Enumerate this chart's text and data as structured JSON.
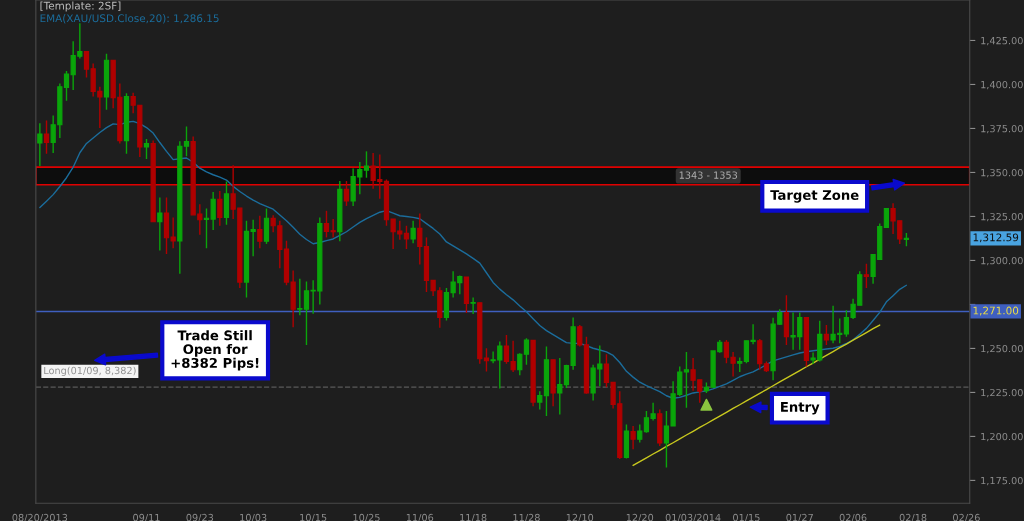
{
  "chart_data": {
    "type": "candlestick",
    "title": "[Template: 2SF]",
    "subtitle": "EMA(XAU/USD.Close,20): 1,286.15",
    "categories": [
      "08/20/2013",
      null,
      null,
      null,
      null,
      null,
      null,
      null,
      null,
      null,
      null,
      null,
      null,
      null,
      null,
      null,
      "09/11",
      null,
      null,
      null,
      null,
      null,
      null,
      null,
      "09/23",
      null,
      null,
      null,
      null,
      null,
      null,
      null,
      "10/03",
      null,
      null,
      null,
      null,
      null,
      null,
      null,
      null,
      "10/15",
      null,
      null,
      null,
      null,
      null,
      null,
      null,
      "10/25",
      null,
      null,
      null,
      null,
      null,
      null,
      null,
      "11/06",
      null,
      null,
      null,
      null,
      null,
      null,
      null,
      "11/18",
      null,
      null,
      null,
      null,
      null,
      null,
      null,
      "11/28",
      null,
      null,
      null,
      null,
      null,
      null,
      null,
      "12/10",
      null,
      null,
      null,
      null,
      null,
      null,
      null,
      null,
      "12/20",
      null,
      null,
      null,
      null,
      null,
      null,
      null,
      "01/03/2014",
      null,
      null,
      null,
      null,
      null,
      null,
      null,
      "01/15",
      null,
      null,
      null,
      null,
      null,
      null,
      null,
      "01/27",
      null,
      null,
      null,
      null,
      null,
      null,
      null,
      "02/06",
      null,
      null,
      null,
      null,
      null,
      null,
      null,
      null,
      "02/18",
      null,
      null,
      null,
      null,
      null,
      null,
      null,
      "02/26"
    ],
    "ohlc": [
      [
        1366.7,
        1378.0,
        1353.6,
        1371.8
      ],
      [
        1371.8,
        1379.5,
        1360.7,
        1367.1
      ],
      [
        1367.1,
        1382.4,
        1361.1,
        1377.1
      ],
      [
        1377.1,
        1400.6,
        1369.6,
        1398.7
      ],
      [
        1398.3,
        1407.6,
        1390.8,
        1405.9
      ],
      [
        1405.5,
        1424.5,
        1396.8,
        1416.4
      ],
      [
        1416.0,
        1434.8,
        1414.7,
        1418.7
      ],
      [
        1418.7,
        1418.7,
        1404.0,
        1408.7
      ],
      [
        1408.9,
        1411.9,
        1393.1,
        1396.1
      ],
      [
        1396.1,
        1398.7,
        1375.2,
        1392.9
      ],
      [
        1392.9,
        1417.5,
        1385.6,
        1413.8
      ],
      [
        1413.8,
        1413.8,
        1386.5,
        1392.5
      ],
      [
        1392.7,
        1400.6,
        1366.4,
        1368.1
      ],
      [
        1368.1,
        1395.0,
        1360.7,
        1393.1
      ],
      [
        1393.1,
        1395.3,
        1383.7,
        1388.2
      ],
      [
        1388.2,
        1388.2,
        1358.8,
        1364.5
      ],
      [
        1364.5,
        1369.0,
        1357.7,
        1366.4
      ],
      [
        1366.4,
        1368.2,
        1322.0,
        1322.0
      ],
      [
        1322.0,
        1335.7,
        1305.6,
        1326.9
      ],
      [
        1326.9,
        1335.7,
        1303.7,
        1312.9
      ],
      [
        1313.3,
        1324.4,
        1306.9,
        1311.1
      ],
      [
        1311.1,
        1367.7,
        1292.4,
        1364.9
      ],
      [
        1364.9,
        1376.1,
        1359.2,
        1367.5
      ],
      [
        1367.5,
        1370.5,
        1325.9,
        1325.9
      ],
      [
        1326.3,
        1331.9,
        1314.6,
        1323.1
      ],
      [
        1323.3,
        1329.5,
        1306.9,
        1324.0
      ],
      [
        1323.5,
        1338.9,
        1317.3,
        1334.8
      ],
      [
        1334.8,
        1339.5,
        1319.7,
        1324.4
      ],
      [
        1324.4,
        1344.9,
        1320.3,
        1337.8
      ],
      [
        1337.8,
        1354.1,
        1323.5,
        1329.1
      ],
      [
        1329.7,
        1329.7,
        1284.3,
        1287.7
      ],
      [
        1287.7,
        1322.5,
        1278.9,
        1316.5
      ],
      [
        1316.5,
        1323.1,
        1302.4,
        1317.5
      ],
      [
        1317.5,
        1325.4,
        1306.9,
        1310.9
      ],
      [
        1310.9,
        1329.5,
        1309.4,
        1324.0
      ],
      [
        1323.9,
        1325.7,
        1316.0,
        1319.7
      ],
      [
        1319.7,
        1322.5,
        1295.6,
        1306.2
      ],
      [
        1306.5,
        1311.2,
        1285.9,
        1287.7
      ],
      [
        1287.7,
        1294.3,
        1262.0,
        1272.3
      ],
      [
        1272.3,
        1289.6,
        1268.9,
        1272.7
      ],
      [
        1272.3,
        1288.1,
        1252.0,
        1282.7
      ],
      [
        1282.7,
        1288.7,
        1269.7,
        1283.0
      ],
      [
        1282.7,
        1324.4,
        1274.9,
        1321.0
      ],
      [
        1321.0,
        1328.2,
        1313.1,
        1316.5
      ],
      [
        1316.9,
        1323.5,
        1313.1,
        1316.3
      ],
      [
        1316.3,
        1345.1,
        1310.9,
        1340.4
      ],
      [
        1340.4,
        1345.1,
        1331.0,
        1333.8
      ],
      [
        1333.8,
        1352.3,
        1331.0,
        1347.6
      ],
      [
        1347.4,
        1356.0,
        1337.6,
        1351.7
      ],
      [
        1351.3,
        1362.0,
        1347.0,
        1353.6
      ],
      [
        1353.6,
        1361.1,
        1340.8,
        1345.5
      ],
      [
        1346.0,
        1360.2,
        1335.1,
        1344.9
      ],
      [
        1344.9,
        1346.0,
        1319.7,
        1323.1
      ],
      [
        1323.5,
        1323.5,
        1306.5,
        1316.3
      ],
      [
        1316.7,
        1322.5,
        1311.8,
        1315.0
      ],
      [
        1315.4,
        1319.7,
        1306.5,
        1312.2
      ],
      [
        1312.2,
        1322.5,
        1309.7,
        1318.2
      ],
      [
        1318.2,
        1326.7,
        1297.7,
        1307.9
      ],
      [
        1307.9,
        1313.1,
        1282.1,
        1288.7
      ],
      [
        1288.7,
        1288.7,
        1279.8,
        1282.8
      ],
      [
        1282.8,
        1284.7,
        1261.8,
        1267.6
      ],
      [
        1267.6,
        1284.3,
        1265.9,
        1281.7
      ],
      [
        1281.7,
        1293.9,
        1278.9,
        1287.7
      ],
      [
        1287.4,
        1291.5,
        1280.8,
        1290.9
      ],
      [
        1290.6,
        1290.6,
        1270.2,
        1275.5
      ],
      [
        1275.7,
        1278.9,
        1269.5,
        1276.1
      ],
      [
        1275.9,
        1275.9,
        1241.3,
        1244.1
      ],
      [
        1244.5,
        1250.1,
        1236.9,
        1243.0
      ],
      [
        1243.0,
        1248.2,
        1241.6,
        1243.5
      ],
      [
        1243.5,
        1253.9,
        1227.2,
        1251.4
      ],
      [
        1251.4,
        1257.6,
        1241.3,
        1242.6
      ],
      [
        1242.6,
        1254.4,
        1236.6,
        1237.9
      ],
      [
        1237.9,
        1247.3,
        1234.7,
        1246.7
      ],
      [
        1246.7,
        1255.8,
        1240.7,
        1254.8
      ],
      [
        1254.6,
        1254.6,
        1217.2,
        1219.5
      ],
      [
        1219.5,
        1225.7,
        1215.3,
        1223.2
      ],
      [
        1223.2,
        1251.1,
        1211.6,
        1243.5
      ],
      [
        1243.5,
        1243.5,
        1217.2,
        1224.7
      ],
      [
        1224.7,
        1244.5,
        1212.5,
        1229.4
      ],
      [
        1229.4,
        1240.7,
        1227.5,
        1240.3
      ],
      [
        1240.3,
        1267.6,
        1237.9,
        1262.3
      ],
      [
        1262.3,
        1263.3,
        1251.1,
        1252.0
      ],
      [
        1252.0,
        1256.7,
        1224.2,
        1224.7
      ],
      [
        1224.7,
        1240.7,
        1220.4,
        1238.8
      ],
      [
        1238.4,
        1251.6,
        1228.5,
        1241.1
      ],
      [
        1241.1,
        1246.7,
        1227.9,
        1230.7
      ],
      [
        1230.7,
        1230.7,
        1215.9,
        1218.1
      ],
      [
        1218.5,
        1225.7,
        1187.1,
        1188.0
      ],
      [
        1188.0,
        1206.8,
        1187.5,
        1203.1
      ],
      [
        1202.7,
        1205.9,
        1192.7,
        1198.4
      ],
      [
        1198.4,
        1206.8,
        1196.5,
        1203.1
      ],
      [
        1202.7,
        1214.4,
        1202.1,
        1210.6
      ],
      [
        1210.2,
        1219.1,
        1209.1,
        1212.9
      ],
      [
        1212.9,
        1215.3,
        1194.6,
        1196.3
      ],
      [
        1196.3,
        1214.4,
        1182.4,
        1205.9
      ],
      [
        1205.9,
        1231.3,
        1205.9,
        1224.2
      ],
      [
        1223.8,
        1239.8,
        1222.8,
        1236.6
      ],
      [
        1236.6,
        1247.9,
        1216.3,
        1237.9
      ],
      [
        1237.9,
        1244.5,
        1226.0,
        1231.9
      ],
      [
        1232.2,
        1232.2,
        1219.1,
        1225.7
      ],
      [
        1226.0,
        1230.7,
        1224.7,
        1227.9
      ],
      [
        1227.9,
        1248.6,
        1227.5,
        1248.6
      ],
      [
        1248.2,
        1254.8,
        1247.5,
        1253.5
      ],
      [
        1253.5,
        1254.8,
        1241.6,
        1245.0
      ],
      [
        1245.0,
        1247.9,
        1234.1,
        1241.6
      ],
      [
        1241.6,
        1244.8,
        1236.6,
        1242.6
      ],
      [
        1242.6,
        1254.3,
        1241.6,
        1254.3
      ],
      [
        1253.9,
        1263.7,
        1252.4,
        1254.6
      ],
      [
        1254.4,
        1255.4,
        1237.9,
        1241.3
      ],
      [
        1241.3,
        1242.6,
        1236.6,
        1237.3
      ],
      [
        1237.3,
        1267.4,
        1231.9,
        1263.8
      ],
      [
        1263.8,
        1272.3,
        1263.3,
        1270.4
      ],
      [
        1270.4,
        1280.2,
        1252.0,
        1256.7
      ],
      [
        1256.5,
        1270.4,
        1249.2,
        1257.3
      ],
      [
        1256.7,
        1270.4,
        1249.2,
        1267.6
      ],
      [
        1267.6,
        1267.6,
        1239.8,
        1243.2
      ],
      [
        1243.5,
        1247.7,
        1241.1,
        1244.5
      ],
      [
        1243.5,
        1265.7,
        1242.6,
        1258.0
      ],
      [
        1258.0,
        1263.3,
        1252.0,
        1254.8
      ],
      [
        1254.8,
        1274.2,
        1252.9,
        1258.0
      ],
      [
        1258.0,
        1267.0,
        1252.9,
        1258.6
      ],
      [
        1258.2,
        1271.7,
        1256.7,
        1267.6
      ],
      [
        1267.6,
        1278.3,
        1266.7,
        1275.1
      ],
      [
        1274.6,
        1293.8,
        1274.6,
        1291.9
      ],
      [
        1291.9,
        1298.1,
        1284.3,
        1290.9
      ],
      [
        1290.9,
        1303.7,
        1286.8,
        1303.3
      ],
      [
        1300.5,
        1321.0,
        1300.5,
        1319.3
      ],
      [
        1318.8,
        1329.5,
        1318.4,
        1329.5
      ],
      [
        1329.5,
        1332.5,
        1315.0,
        1322.5
      ],
      [
        1322.5,
        1322.5,
        1309.4,
        1312.2
      ],
      [
        1312.0,
        1315.6,
        1308.1,
        1312.6
      ],
      null,
      null,
      null,
      null,
      null,
      null,
      null,
      null,
      null
    ],
    "colors": [
      "#0aa50a",
      "#b00000",
      "#0aa50a",
      "#0aa50a",
      "#0aa50a",
      "#0aa50a",
      "#0aa50a",
      "#b00000",
      "#b00000",
      "#b00000",
      "#0aa50a",
      "#b00000",
      "#b00000",
      "#0aa50a",
      "#b00000",
      "#b00000",
      "#0aa50a",
      "#b00000",
      "#0aa50a",
      "#b00000",
      "#b00000",
      "#0aa50a",
      "#0aa50a",
      "#b00000",
      "#b00000",
      "#0aa50a",
      "#0aa50a",
      "#b00000",
      "#0aa50a",
      "#b00000",
      "#b00000",
      "#0aa50a",
      "#0aa50a",
      "#b00000",
      "#0aa50a",
      "#b00000",
      "#b00000",
      "#b00000",
      "#b00000",
      "#0aa50a",
      "#0aa50a",
      "#0aa50a",
      "#0aa50a",
      "#b00000",
      "#b00000",
      "#0aa50a",
      "#b00000",
      "#0aa50a",
      "#0aa50a",
      "#0aa50a",
      "#b00000",
      "#b00000",
      "#b00000",
      "#b00000",
      "#b00000",
      "#b00000",
      "#0aa50a",
      "#b00000",
      "#b00000",
      "#b00000",
      "#b00000",
      "#0aa50a",
      "#0aa50a",
      "#0aa50a",
      "#b00000",
      "#0aa50a",
      "#b00000",
      "#b00000",
      "#0aa50a",
      "#0aa50a",
      "#b00000",
      "#b00000",
      "#0aa50a",
      "#0aa50a",
      "#b00000",
      "#0aa50a",
      "#0aa50a",
      "#b00000",
      "#0aa50a",
      "#0aa50a",
      "#0aa50a",
      "#b00000",
      "#b00000",
      "#0aa50a",
      "#0aa50a",
      "#b00000",
      "#b00000",
      "#b00000",
      "#0aa50a",
      "#b00000",
      "#0aa50a",
      "#0aa50a",
      "#0aa50a",
      "#b00000",
      "#0aa50a",
      "#0aa50a",
      "#0aa50a",
      "#0aa50a",
      "#b00000",
      "#b00000",
      "#0aa50a",
      "#0aa50a",
      "#0aa50a",
      "#b00000",
      "#b00000",
      "#0aa50a",
      "#0aa50a",
      "#0aa50a",
      "#b00000",
      "#b00000",
      "#0aa50a",
      "#0aa50a",
      "#b00000",
      "#0aa50a",
      "#0aa50a",
      "#b00000",
      "#0aa50a",
      "#0aa50a",
      "#b00000",
      "#0aa50a",
      "#0aa50a",
      "#0aa50a",
      "#0aa50a",
      "#0aa50a",
      "#b00000",
      "#0aa50a",
      "#0aa50a",
      "#0aa50a",
      "#b00000",
      "#b00000",
      "#0aa50a",
      null,
      null,
      null,
      null,
      null,
      null,
      null,
      null,
      null
    ],
    "series": [
      {
        "type": "line",
        "color": "#1b6d9c",
        "values": [
          1330.1,
          1333.7,
          1337.4,
          1342.0,
          1347.0,
          1353.0,
          1361.2,
          1366.5,
          1369.6,
          1372.7,
          1375.5,
          1377.6,
          1377.2,
          1378.5,
          1379.0,
          1377.7,
          1375.5,
          1372.4,
          1367.0,
          1362.0,
          1357.3,
          1357.8,
          1358.2,
          1355.8,
          1352.4,
          1350.3,
          1348.7,
          1347.3,
          1345.7,
          1342.1,
          1339.2,
          1336.6,
          1334.3,
          1332.3,
          1330.7,
          1329.1,
          1325.8,
          1322.6,
          1318.8,
          1314.9,
          1311.9,
          1309.5,
          1310.2,
          1311.3,
          1312.2,
          1314.2,
          1316.3,
          1319.0,
          1321.6,
          1323.8,
          1325.6,
          1327.4,
          1328.3,
          1326.9,
          1325.4,
          1325.0,
          1324.5,
          1323.7,
          1320.9,
          1318.2,
          1315.0,
          1310.5,
          1308.3,
          1306.0,
          1303.7,
          1301.2,
          1298.5,
          1293.0,
          1287.5,
          1283.7,
          1280.5,
          1277.6,
          1274.1,
          1270.8,
          1266.9,
          1263.0,
          1260.1,
          1257.9,
          1255.6,
          1253.3,
          1252.9,
          1252.9,
          1251.6,
          1250.1,
          1249.1,
          1248.0,
          1246.0,
          1242.0,
          1237.0,
          1233.7,
          1230.8,
          1228.8,
          1227.1,
          1225.5,
          1223.1,
          1221.7,
          1222.2,
          1223.4,
          1224.7,
          1225.3,
          1225.9,
          1227.0,
          1228.4,
          1229.9,
          1231.9,
          1233.9,
          1235.4,
          1236.7,
          1238.6,
          1240.8,
          1242.9,
          1244.1,
          1245.2,
          1246.3,
          1247.4,
          1248.1,
          1248.7,
          1249.2,
          1249.7,
          1250.1,
          1251.2,
          1252.8,
          1254.9,
          1258.1,
          1261.4,
          1265.9,
          1270.5,
          1276.5,
          1280.0,
          1283.6,
          1285.9,
          null,
          null,
          null,
          null,
          null,
          null,
          null,
          null,
          null
        ]
      },
      {
        "type": "line",
        "color": "#c8c81e",
        "values": [
          null,
          null,
          null,
          null,
          null,
          null,
          null,
          null,
          null,
          null,
          null,
          null,
          null,
          null,
          null,
          null,
          null,
          null,
          null,
          null,
          null,
          null,
          null,
          null,
          null,
          null,
          null,
          null,
          null,
          null,
          null,
          null,
          null,
          null,
          null,
          null,
          null,
          null,
          null,
          null,
          null,
          null,
          null,
          null,
          null,
          null,
          null,
          null,
          null,
          null,
          null,
          null,
          null,
          null,
          null,
          null,
          null,
          null,
          null,
          null,
          null,
          null,
          null,
          null,
          null,
          null,
          null,
          null,
          null,
          null,
          null,
          null,
          null,
          null,
          null,
          null,
          null,
          null,
          null,
          null,
          null,
          null,
          null,
          null,
          null,
          null,
          null,
          null,
          null,
          1183.5,
          1185.7,
          1187.8,
          1190.0,
          1192.1,
          1194.3,
          1196.4,
          1198.6,
          1200.8,
          1202.9,
          1205.1,
          1207.2,
          1209.4,
          1211.5,
          1213.7,
          1215.9,
          1218.0,
          1220.2,
          1222.3,
          1224.5,
          1226.6,
          1228.8,
          1231.0,
          1233.1,
          1235.3,
          1237.4,
          1239.6,
          1241.7,
          1243.9,
          1246.1,
          1248.2,
          1250.4,
          1252.5,
          1254.7,
          1256.8,
          1259.0,
          1261.2,
          1263.3,
          null,
          null,
          null,
          null,
          null,
          null,
          null,
          null,
          null,
          null,
          null,
          null,
          null
        ]
      },
      {
        "type": "scatter",
        "marker": "triangle",
        "color": "#8bc53f",
        "values": [
          null,
          null,
          null,
          null,
          null,
          null,
          null,
          null,
          null,
          null,
          null,
          null,
          null,
          null,
          null,
          null,
          null,
          null,
          null,
          null,
          null,
          null,
          null,
          null,
          null,
          null,
          null,
          null,
          null,
          null,
          null,
          null,
          null,
          null,
          null,
          null,
          null,
          null,
          null,
          null,
          null,
          null,
          null,
          null,
          null,
          null,
          null,
          null,
          null,
          null,
          null,
          null,
          null,
          null,
          null,
          null,
          null,
          null,
          null,
          null,
          null,
          null,
          null,
          null,
          null,
          null,
          null,
          null,
          null,
          null,
          null,
          null,
          null,
          null,
          null,
          null,
          null,
          null,
          null,
          null,
          null,
          null,
          null,
          null,
          null,
          null,
          null,
          null,
          null,
          null,
          null,
          null,
          null,
          null,
          null,
          null,
          null,
          null,
          null,
          null,
          1218,
          null,
          null,
          null,
          null,
          null,
          null,
          null,
          null,
          null,
          null,
          null,
          null,
          null,
          null,
          null,
          null,
          null,
          null,
          null,
          null,
          null,
          null,
          null,
          null,
          null,
          null,
          null,
          null,
          null,
          null,
          null,
          null,
          null,
          null,
          null,
          null,
          null,
          null,
          null
        ]
      }
    ],
    "ylim": [
      1162,
      1448
    ],
    "yticks": [
      {
        "value": 1175,
        "label": "1,175.00"
      },
      {
        "value": 1200,
        "label": "1,200.00"
      },
      {
        "value": 1225,
        "label": "1,225.00"
      },
      {
        "value": 1250,
        "label": "1,250.00"
      },
      {
        "value": 1275,
        "label": null
      },
      {
        "value": 1300,
        "label": "1,300.00"
      },
      {
        "value": 1325,
        "label": "1,325.00"
      },
      {
        "value": 1350,
        "label": "1,350.00"
      },
      {
        "value": 1375,
        "label": "1,375.00"
      },
      {
        "value": 1400,
        "label": "1,400.00"
      },
      {
        "value": 1425,
        "label": "1,425.00"
      }
    ],
    "ref_lines": [
      {
        "axis": "y",
        "value": 1271,
        "label": "1,271.00",
        "color": "#3f5fbf",
        "line_style": "solid"
      },
      {
        "axis": "y",
        "value": 1228,
        "label": "Long(01/09, 8,382)",
        "color": "#5a5a5a",
        "line_style": "dashed"
      }
    ],
    "bands": [
      {
        "axis": "y",
        "from": 1343,
        "to": 1353,
        "label": "1343 - 1353",
        "color": "#e00000"
      }
    ],
    "annotations": [
      "Target Zone",
      "Trade Still\nOpen for\n+8382 Pips!",
      "Entry",
      "1,312.59"
    ],
    "grid": false,
    "legend": false
  }
}
